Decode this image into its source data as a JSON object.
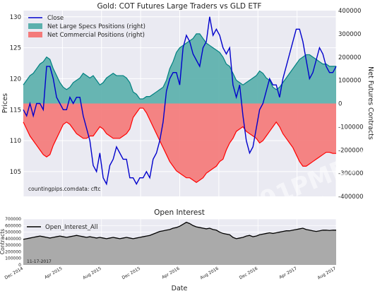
{
  "watermark": {
    "text": "91PME.COM",
    "subtext": "贵金属网"
  },
  "chart_data": [
    {
      "type": "line",
      "title": "Gold: COT Futures Large Traders vs GLD ETF",
      "ylabel": "Prices",
      "ylabel_right": "Net Futures Contracts",
      "ylim": [
        101,
        131
      ],
      "ylim_right": [
        -400000,
        400000
      ],
      "yticks": [
        105,
        110,
        115,
        120,
        125,
        130
      ],
      "yticks_right": [
        -400000,
        -300000,
        -200000,
        -100000,
        0,
        100000,
        200000,
        300000,
        400000
      ],
      "legend_position": "top-left",
      "grid": true,
      "annotations": [
        "countingpips.com",
        "data: cftc"
      ],
      "series": [
        {
          "name": "Close",
          "color": "#0000cc",
          "axis": "left",
          "values": [
            115,
            114,
            116,
            114,
            116,
            116,
            115,
            122,
            122,
            120,
            117,
            116,
            115,
            115,
            117,
            116,
            117,
            117,
            114,
            112,
            110,
            106,
            105,
            108,
            104,
            103,
            106,
            107,
            109,
            108,
            107,
            107,
            104,
            104,
            103,
            104,
            104,
            105,
            104,
            107,
            108,
            110,
            113,
            118,
            120,
            121,
            121,
            119,
            125,
            127,
            126,
            124,
            123,
            122,
            125,
            126,
            130,
            127,
            128,
            127,
            125,
            124,
            125,
            119,
            117,
            119,
            114,
            110,
            108,
            109,
            112,
            115,
            116,
            118,
            120,
            119,
            119,
            117,
            120,
            122,
            124,
            126,
            128,
            128,
            126,
            123,
            120,
            121,
            123,
            125,
            124,
            122,
            121,
            121,
            122
          ]
        },
        {
          "name": "Net Large Specs Positions (right)",
          "color": "#5bb0ad",
          "axis": "right",
          "values": [
            80000,
            100000,
            120000,
            130000,
            150000,
            170000,
            180000,
            200000,
            190000,
            150000,
            120000,
            90000,
            70000,
            60000,
            70000,
            90000,
            100000,
            110000,
            130000,
            120000,
            110000,
            120000,
            100000,
            80000,
            90000,
            110000,
            120000,
            130000,
            120000,
            120000,
            120000,
            110000,
            90000,
            50000,
            40000,
            20000,
            20000,
            30000,
            30000,
            40000,
            50000,
            60000,
            70000,
            100000,
            150000,
            180000,
            220000,
            240000,
            250000,
            260000,
            270000,
            280000,
            300000,
            300000,
            280000,
            260000,
            250000,
            240000,
            230000,
            220000,
            200000,
            170000,
            160000,
            130000,
            100000,
            90000,
            80000,
            90000,
            100000,
            110000,
            120000,
            140000,
            130000,
            110000,
            100000,
            70000,
            60000,
            70000,
            90000,
            110000,
            130000,
            150000,
            170000,
            190000,
            200000,
            210000,
            210000,
            200000,
            190000,
            180000,
            170000,
            170000,
            160000,
            160000,
            160000
          ]
        },
        {
          "name": "Net Commercial Positions (right)",
          "color": "#f47a7a",
          "axis": "right",
          "values": [
            -80000,
            -110000,
            -140000,
            -160000,
            -180000,
            -200000,
            -220000,
            -230000,
            -220000,
            -180000,
            -150000,
            -120000,
            -90000,
            -80000,
            -90000,
            -110000,
            -130000,
            -140000,
            -150000,
            -150000,
            -140000,
            -140000,
            -120000,
            -100000,
            -110000,
            -130000,
            -140000,
            -150000,
            -150000,
            -150000,
            -140000,
            -130000,
            -110000,
            -60000,
            -40000,
            -20000,
            -20000,
            -40000,
            -70000,
            -100000,
            -130000,
            -160000,
            -190000,
            -220000,
            -250000,
            -270000,
            -290000,
            -300000,
            -310000,
            -320000,
            -320000,
            -330000,
            -340000,
            -330000,
            -320000,
            -300000,
            -290000,
            -280000,
            -270000,
            -250000,
            -240000,
            -200000,
            -170000,
            -150000,
            -120000,
            -110000,
            -100000,
            -120000,
            -130000,
            -140000,
            -150000,
            -170000,
            -160000,
            -140000,
            -120000,
            -100000,
            -80000,
            -100000,
            -130000,
            -150000,
            -170000,
            -190000,
            -220000,
            -250000,
            -270000,
            -270000,
            -260000,
            -250000,
            -240000,
            -230000,
            -220000,
            -210000,
            -210000,
            -215000,
            -215000
          ]
        }
      ]
    },
    {
      "type": "area",
      "title": "Open Interest",
      "xlabel": "Date",
      "ylabel": "Contracts",
      "ylim": [
        0,
        700000
      ],
      "yticks": [
        0,
        100000,
        200000,
        300000,
        400000,
        500000,
        600000,
        700000
      ],
      "x_ticks": [
        "Dec 2014",
        "Apr 2015",
        "Aug 2015",
        "Dec 2015",
        "Apr 2016",
        "Aug 2016",
        "Dec 2016",
        "Apr 2017",
        "Aug 2017"
      ],
      "legend_position": "top-left",
      "annotations": [
        "11-17-2017"
      ],
      "series": [
        {
          "name": "Open_Interest_All",
          "color": "#000000",
          "values": [
            390000,
            400000,
            410000,
            420000,
            430000,
            440000,
            430000,
            420000,
            410000,
            420000,
            430000,
            440000,
            430000,
            420000,
            430000,
            440000,
            450000,
            440000,
            430000,
            420000,
            430000,
            420000,
            410000,
            420000,
            410000,
            400000,
            410000,
            420000,
            410000,
            400000,
            410000,
            420000,
            410000,
            400000,
            410000,
            420000,
            430000,
            440000,
            450000,
            470000,
            490000,
            510000,
            520000,
            530000,
            540000,
            560000,
            570000,
            590000,
            620000,
            650000,
            630000,
            600000,
            580000,
            570000,
            560000,
            550000,
            560000,
            540000,
            530000,
            500000,
            480000,
            470000,
            460000,
            420000,
            400000,
            410000,
            420000,
            440000,
            450000,
            430000,
            440000,
            460000,
            470000,
            480000,
            490000,
            480000,
            490000,
            500000,
            510000,
            520000,
            520000,
            530000,
            540000,
            550000,
            560000,
            540000,
            530000,
            520000,
            510000,
            520000,
            530000,
            530000,
            525000,
            530000,
            530000
          ]
        }
      ]
    }
  ]
}
